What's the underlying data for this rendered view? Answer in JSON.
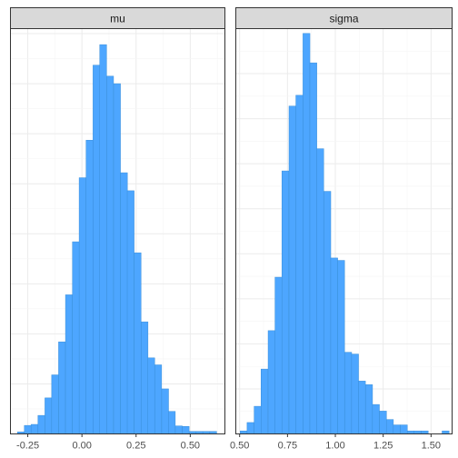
{
  "chart_data": [
    {
      "type": "bar",
      "panel": "mu",
      "bar_color": "#4da6ff",
      "xlim": [
        -0.33,
        0.66
      ],
      "ylim": [
        0,
        810
      ],
      "x_ticks": [
        -0.25,
        0.0,
        0.25,
        0.5
      ],
      "x_tick_labels": [
        "-0.25",
        "0.00",
        "0.25",
        "0.50"
      ],
      "bin_width": 0.0317,
      "x": [
        -0.282,
        -0.25,
        -0.219,
        -0.187,
        -0.155,
        -0.124,
        -0.092,
        -0.06,
        -0.028,
        0.003,
        0.035,
        0.067,
        0.098,
        0.13,
        0.162,
        0.194,
        0.225,
        0.257,
        0.289,
        0.32,
        0.352,
        0.384,
        0.415,
        0.447,
        0.479,
        0.511,
        0.542,
        0.574,
        0.606
      ],
      "values": [
        4,
        17,
        19,
        37,
        72,
        118,
        184,
        278,
        384,
        512,
        587,
        737,
        778,
        715,
        700,
        522,
        486,
        362,
        224,
        152,
        138,
        90,
        45,
        16,
        15,
        5,
        5,
        5,
        5
      ]
    },
    {
      "type": "bar",
      "panel": "sigma",
      "bar_color": "#4da6ff",
      "xlim": [
        0.48,
        1.61
      ],
      "ylim": [
        0,
        675
      ],
      "x_ticks": [
        0.5,
        0.75,
        1.0,
        1.25,
        1.5
      ],
      "x_tick_labels": [
        "0.50",
        "0.75",
        "1.00",
        "1.25",
        "1.50"
      ],
      "bin_width": 0.0364,
      "x": [
        0.521,
        0.557,
        0.594,
        0.63,
        0.667,
        0.703,
        0.739,
        0.776,
        0.812,
        0.849,
        0.885,
        0.921,
        0.958,
        0.994,
        1.03,
        1.067,
        1.103,
        1.139,
        1.176,
        1.212,
        1.249,
        1.285,
        1.321,
        1.358,
        1.394,
        1.43,
        1.467,
        1.503,
        1.539,
        1.576
      ],
      "values": [
        5,
        19,
        46,
        108,
        172,
        261,
        438,
        546,
        564,
        667,
        618,
        475,
        404,
        293,
        289,
        136,
        133,
        88,
        82,
        49,
        38,
        24,
        15,
        15,
        5,
        5,
        5,
        0,
        0,
        5
      ]
    }
  ]
}
